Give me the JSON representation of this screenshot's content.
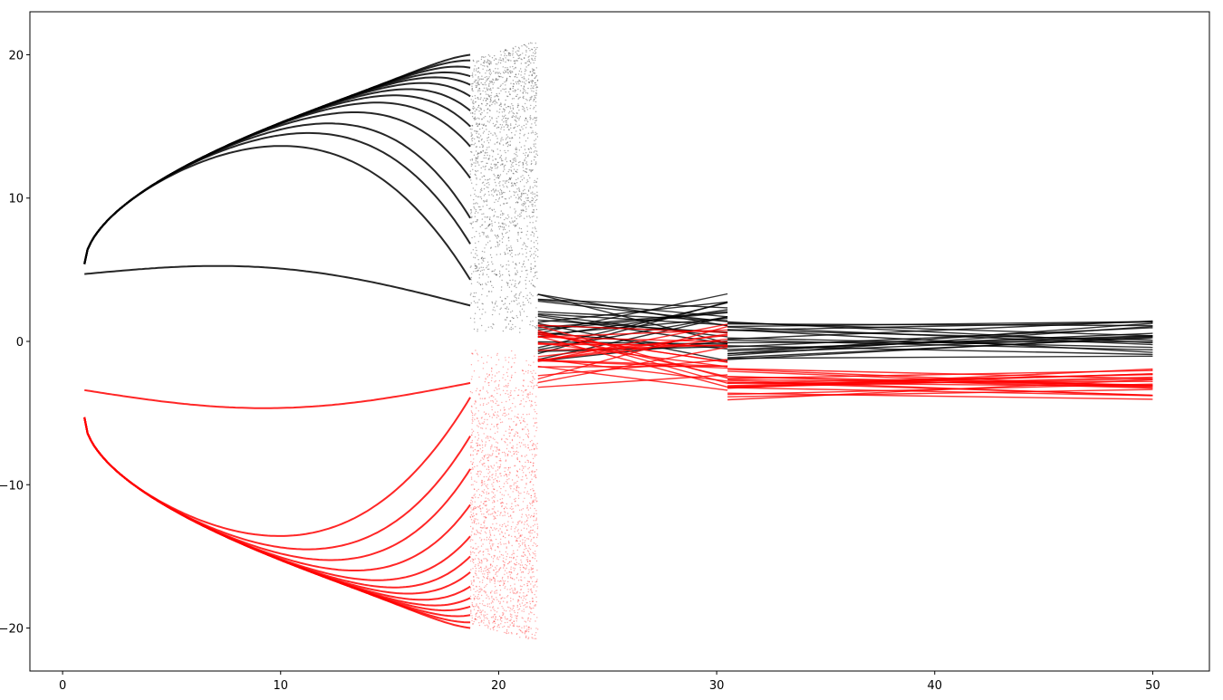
{
  "chart_data": {
    "type": "scatter",
    "title": "",
    "xlabel": "",
    "ylabel": "",
    "xlim": [
      -1.5,
      52.6
    ],
    "ylim": [
      -23.0,
      23.0
    ],
    "grid": false,
    "legend": "none",
    "x_ticks": [
      {
        "value": 0,
        "label": "0"
      },
      {
        "value": 10,
        "label": "10"
      },
      {
        "value": 20,
        "label": "20"
      },
      {
        "value": 30,
        "label": "30"
      },
      {
        "value": 40,
        "label": "40"
      },
      {
        "value": 50,
        "label": "50"
      }
    ],
    "y_ticks": [
      {
        "value": 20,
        "label": "20"
      },
      {
        "value": 10,
        "label": "10"
      },
      {
        "value": 0,
        "label": "0"
      },
      {
        "value": -10,
        "label": "−10"
      },
      {
        "value": -20,
        "label": "−20"
      }
    ],
    "x_range": [
      1,
      50
    ],
    "regimes": [
      {
        "x_start": 1.0,
        "x_end": 18.7,
        "description": "smooth branches"
      },
      {
        "x_start": 18.7,
        "x_end": 21.8,
        "description": "scattered region"
      },
      {
        "x_start": 21.8,
        "x_end": 30.5,
        "black_band": [
          -1.5,
          3.4
        ],
        "red_band": [
          -3.5,
          1.5
        ]
      },
      {
        "x_start": 30.5,
        "x_end": 50.0,
        "black_band": [
          -1.3,
          1.5
        ],
        "red_band": [
          -4.1,
          -1.8
        ]
      }
    ],
    "envelope": {
      "x_start": 1.0,
      "y_start": 5.4,
      "x_end": 21.8,
      "y_end": 21.0
    },
    "series": [
      {
        "color": "#000000",
        "branch_ends_at_x_18_7": [
          2.5,
          4.3,
          6.8,
          8.6,
          11.4,
          13.6,
          15.0,
          16.1,
          17.1,
          17.9,
          18.5,
          19.1,
          19.6,
          20.0
        ],
        "branch_start_values_at_x_1": [
          4.7,
          5.4
        ]
      },
      {
        "color": "#ff0000",
        "branch_ends_at_x_18_7": [
          -2.9,
          -3.9,
          -6.6,
          -8.9,
          -11.4,
          -13.6,
          -15.0,
          -16.1,
          -17.1,
          -17.9,
          -18.5,
          -19.1,
          -19.6,
          -20.0
        ],
        "branch_start_values_at_x_1": [
          -3.4,
          -5.3
        ]
      }
    ]
  }
}
